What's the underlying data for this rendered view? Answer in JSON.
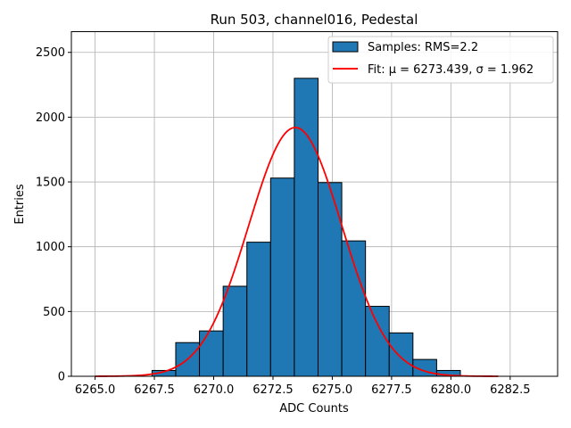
{
  "chart_data": {
    "type": "bar",
    "title": "Run 503, channel016, Pedestal",
    "xlabel": "ADC Counts",
    "ylabel": "Entries",
    "xlim": [
      6264.0,
      6284.5
    ],
    "ylim": [
      0,
      2660
    ],
    "x_ticks": [
      6265.0,
      6267.5,
      6270.0,
      6272.5,
      6275.0,
      6277.5,
      6280.0,
      6282.5
    ],
    "x_tick_labels": [
      "6265.0",
      "6267.5",
      "6270.0",
      "6272.5",
      "6275.0",
      "6277.5",
      "6280.0",
      "6282.5"
    ],
    "y_ticks": [
      0,
      500,
      1000,
      1500,
      2000,
      2500
    ],
    "y_tick_labels": [
      "0",
      "500",
      "1000",
      "1500",
      "2000",
      "2500"
    ],
    "grid": true,
    "legend_position": "top-right",
    "bar_color": "#1f77b4",
    "fit_color": "#ff0000",
    "histogram": {
      "name": "Samples: RMS=2.2",
      "bins": [
        {
          "left": 6267.4,
          "right": 6268.4,
          "count": 45
        },
        {
          "left": 6268.4,
          "right": 6269.4,
          "count": 260
        },
        {
          "left": 6269.4,
          "right": 6270.4,
          "count": 350
        },
        {
          "left": 6270.4,
          "right": 6271.4,
          "count": 695
        },
        {
          "left": 6271.4,
          "right": 6272.4,
          "count": 1035
        },
        {
          "left": 6272.4,
          "right": 6273.4,
          "count": 1530
        },
        {
          "left": 6273.4,
          "right": 6274.4,
          "count": 2300
        },
        {
          "left": 6274.4,
          "right": 6275.4,
          "count": 1495
        },
        {
          "left": 6275.4,
          "right": 6276.4,
          "count": 1045
        },
        {
          "left": 6276.4,
          "right": 6277.4,
          "count": 540
        },
        {
          "left": 6277.4,
          "right": 6278.4,
          "count": 335
        },
        {
          "left": 6278.4,
          "right": 6279.4,
          "count": 130
        },
        {
          "left": 6279.4,
          "right": 6280.4,
          "count": 45
        }
      ]
    },
    "fit": {
      "name": "Fit: μ = 6273.439, σ = 1.962",
      "mu": 6273.439,
      "sigma": 1.962,
      "amplitude": 1920,
      "x_range": [
        6265.0,
        6282.0
      ]
    }
  }
}
